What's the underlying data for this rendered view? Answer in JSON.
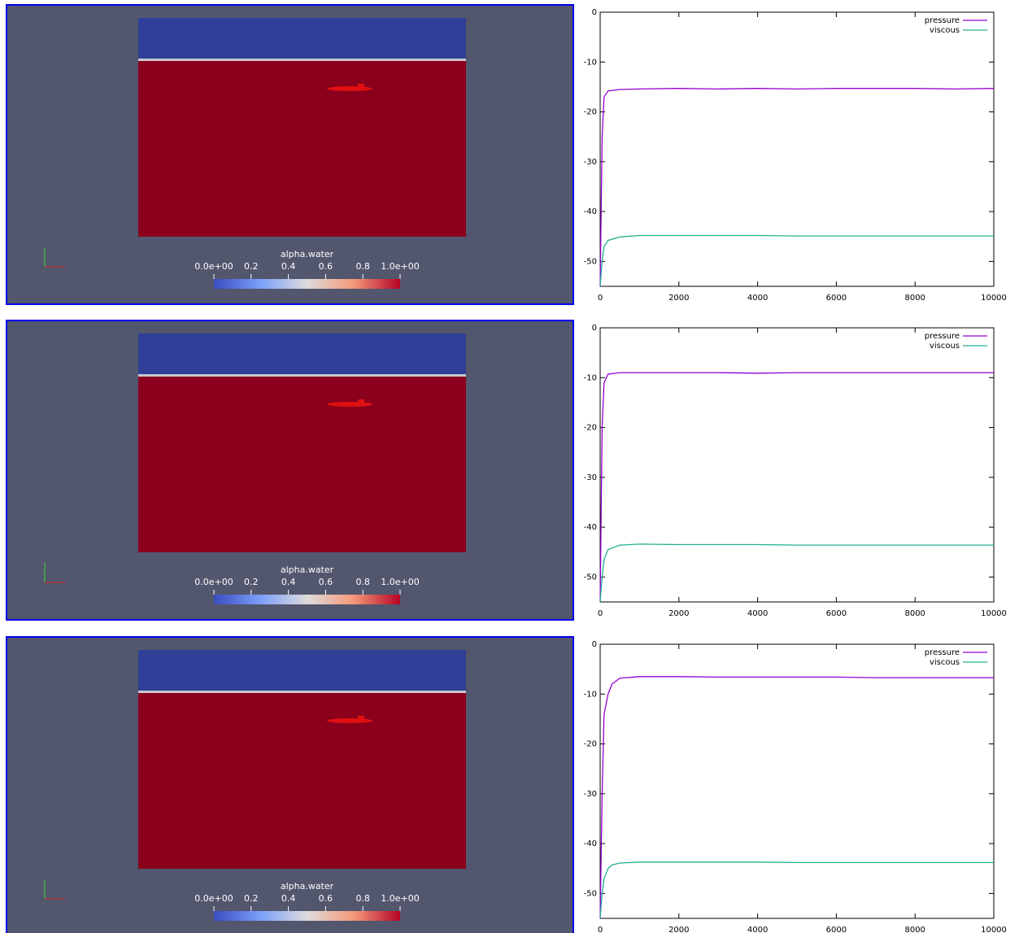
{
  "chart_data": [
    {
      "type": "line",
      "x": [
        0,
        50,
        100,
        200,
        500,
        1000,
        2000,
        3000,
        4000,
        5000,
        6000,
        7000,
        8000,
        9000,
        10000
      ],
      "xlim": [
        0,
        10000
      ],
      "ylim": [
        -55,
        0
      ],
      "xticks": [
        0,
        2000,
        4000,
        6000,
        8000,
        10000
      ],
      "yticks": [
        0,
        -10,
        -20,
        -30,
        -40,
        -50
      ],
      "legend": "top-right",
      "series": [
        {
          "name": "pressure",
          "color": "#9400d3",
          "values": [
            -55,
            -25,
            -17,
            -15.8,
            -15.5,
            -15.4,
            -15.3,
            -15.4,
            -15.3,
            -15.4,
            -15.3,
            -15.3,
            -15.3,
            -15.4,
            -15.3
          ]
        },
        {
          "name": "viscous",
          "color": "#20b090",
          "values": [
            -55,
            -50,
            -47,
            -45.8,
            -45.1,
            -44.8,
            -44.8,
            -44.8,
            -44.8,
            -44.9,
            -44.9,
            -44.9,
            -44.9,
            -44.9,
            -44.9
          ]
        }
      ]
    },
    {
      "type": "line",
      "x": [
        0,
        50,
        100,
        200,
        500,
        1000,
        2000,
        3000,
        4000,
        5000,
        6000,
        7000,
        8000,
        9000,
        10000
      ],
      "xlim": [
        0,
        10000
      ],
      "ylim": [
        -55,
        0
      ],
      "xticks": [
        0,
        2000,
        4000,
        6000,
        8000,
        10000
      ],
      "yticks": [
        0,
        -10,
        -20,
        -30,
        -40,
        -50
      ],
      "legend": "top-right",
      "series": [
        {
          "name": "pressure",
          "color": "#9400d3",
          "values": [
            -55,
            -20,
            -11,
            -9.3,
            -9,
            -9,
            -9,
            -9,
            -9.1,
            -9,
            -9,
            -9,
            -9,
            -9,
            -9
          ]
        },
        {
          "name": "viscous",
          "color": "#20b090",
          "values": [
            -55,
            -50,
            -46.5,
            -44.5,
            -43.6,
            -43.4,
            -43.5,
            -43.5,
            -43.5,
            -43.6,
            -43.6,
            -43.6,
            -43.6,
            -43.6,
            -43.6
          ]
        }
      ]
    },
    {
      "type": "line",
      "x": [
        0,
        50,
        100,
        200,
        300,
        500,
        1000,
        2000,
        3000,
        4000,
        5000,
        6000,
        7000,
        8000,
        9000,
        10000
      ],
      "xlim": [
        0,
        10000
      ],
      "ylim": [
        -55,
        0
      ],
      "xticks": [
        0,
        2000,
        4000,
        6000,
        8000,
        10000
      ],
      "yticks": [
        0,
        -10,
        -20,
        -30,
        -40,
        -50
      ],
      "legend": "top-right",
      "series": [
        {
          "name": "pressure",
          "color": "#9400d3",
          "values": [
            -55,
            -30,
            -14,
            -10,
            -8,
            -6.8,
            -6.5,
            -6.5,
            -6.6,
            -6.6,
            -6.6,
            -6.6,
            -6.7,
            -6.7,
            -6.7,
            -6.7
          ]
        },
        {
          "name": "viscous",
          "color": "#20b090",
          "values": [
            -55,
            -50,
            -47,
            -45,
            -44.3,
            -43.9,
            -43.7,
            -43.7,
            -43.7,
            -43.7,
            -43.8,
            -43.8,
            -43.8,
            -43.8,
            -43.8,
            -43.8
          ]
        }
      ]
    }
  ],
  "renders": [
    {
      "colorbar": {
        "title": "alpha.water",
        "range": [
          0,
          1
        ],
        "ticks": [
          {
            "value": 0,
            "label": "0.0e+00"
          },
          0.2,
          0.4,
          0.6,
          0.8,
          {
            "value": 1,
            "label": "1.0e+00"
          }
        ]
      }
    },
    {
      "colorbar": {
        "title": "alpha.water",
        "range": [
          0,
          1
        ],
        "ticks": [
          {
            "value": 0,
            "label": "0.0e+00"
          },
          0.2,
          0.4,
          0.6,
          0.8,
          {
            "value": 1,
            "label": "1.0e+00"
          }
        ]
      }
    },
    {
      "colorbar": {
        "title": "alpha.water",
        "range": [
          0,
          1
        ],
        "ticks": [
          {
            "value": 0,
            "label": "0.0e+00"
          },
          0.2,
          0.4,
          0.6,
          0.8,
          {
            "value": 1,
            "label": "1.0e+00"
          }
        ]
      }
    }
  ]
}
